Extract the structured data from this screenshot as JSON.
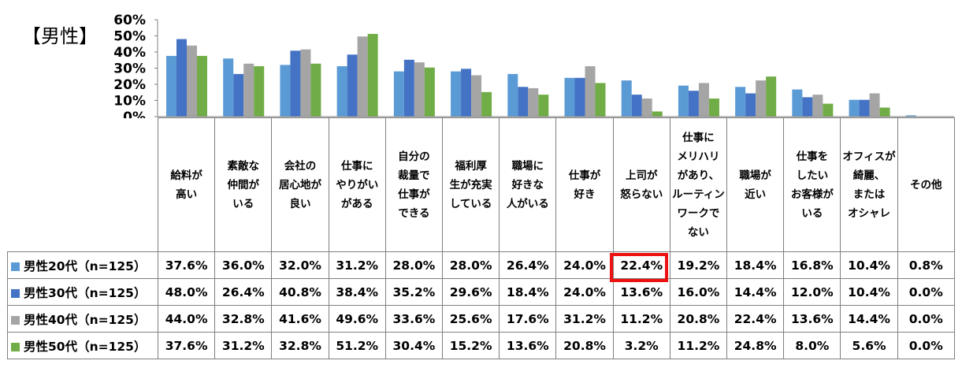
{
  "title": "【男性】",
  "chart_data": {
    "type": "bar",
    "ylim": [
      0,
      60
    ],
    "y_ticks": [
      "60%",
      "50%",
      "40%",
      "30%",
      "20%",
      "10%",
      "0%"
    ],
    "y_tick_values": [
      60,
      50,
      40,
      30,
      20,
      10,
      0
    ],
    "grid": false,
    "categories": [
      "給料が\n高い",
      "素敵な\n仲間が\nいる",
      "会社の\n居心地が\n良い",
      "仕事に\nやりがい\nがある",
      "自分の\n裁量で\n仕事が\nできる",
      "福利厚\n生が充実\nしている",
      "職場に\n好きな\n人がいる",
      "仕事が\n好き",
      "上司が\n怒らない",
      "仕事に\nメリハリ\nがあり、\nルーティン\nワークで\nない",
      "職場が\n近い",
      "仕事を\nしたい\nお客様が\nいる",
      "オフィスが\n綺麗、\nまたは\nオシャレ",
      "その他"
    ],
    "series": [
      {
        "name": "男性20代（n=125）",
        "color": "#5b9bd5",
        "values": [
          37.6,
          36.0,
          32.0,
          31.2,
          28.0,
          28.0,
          26.4,
          24.0,
          22.4,
          19.2,
          18.4,
          16.8,
          10.4,
          0.8
        ],
        "labels": [
          "37.6%",
          "36.0%",
          "32.0%",
          "31.2%",
          "28.0%",
          "28.0%",
          "26.4%",
          "24.0%",
          "22.4%",
          "19.2%",
          "18.4%",
          "16.8%",
          "10.4%",
          "0.8%"
        ]
      },
      {
        "name": "男性30代（n=125）",
        "color": "#4472c4",
        "values": [
          48.0,
          26.4,
          40.8,
          38.4,
          35.2,
          29.6,
          18.4,
          24.0,
          13.6,
          16.0,
          14.4,
          12.0,
          10.4,
          0.0
        ],
        "labels": [
          "48.0%",
          "26.4%",
          "40.8%",
          "38.4%",
          "35.2%",
          "29.6%",
          "18.4%",
          "24.0%",
          "13.6%",
          "16.0%",
          "14.4%",
          "12.0%",
          "10.4%",
          "0.0%"
        ]
      },
      {
        "name": "男性40代（n=125）",
        "color": "#a5a5a5",
        "values": [
          44.0,
          32.8,
          41.6,
          49.6,
          33.6,
          25.6,
          17.6,
          31.2,
          11.2,
          20.8,
          22.4,
          13.6,
          14.4,
          0.0
        ],
        "labels": [
          "44.0%",
          "32.8%",
          "41.6%",
          "49.6%",
          "33.6%",
          "25.6%",
          "17.6%",
          "31.2%",
          "11.2%",
          "20.8%",
          "22.4%",
          "13.6%",
          "14.4%",
          "0.0%"
        ]
      },
      {
        "name": "男性50代（n=125）",
        "color": "#70ad47",
        "values": [
          37.6,
          31.2,
          32.8,
          51.2,
          30.4,
          15.2,
          13.6,
          20.8,
          3.2,
          11.2,
          24.8,
          8.0,
          5.6,
          0.0
        ],
        "labels": [
          "37.6%",
          "31.2%",
          "32.8%",
          "51.2%",
          "30.4%",
          "15.2%",
          "13.6%",
          "20.8%",
          "3.2%",
          "11.2%",
          "24.8%",
          "8.0%",
          "5.6%",
          "0.0%"
        ]
      }
    ],
    "highlight": {
      "series": 0,
      "category": 8
    }
  }
}
